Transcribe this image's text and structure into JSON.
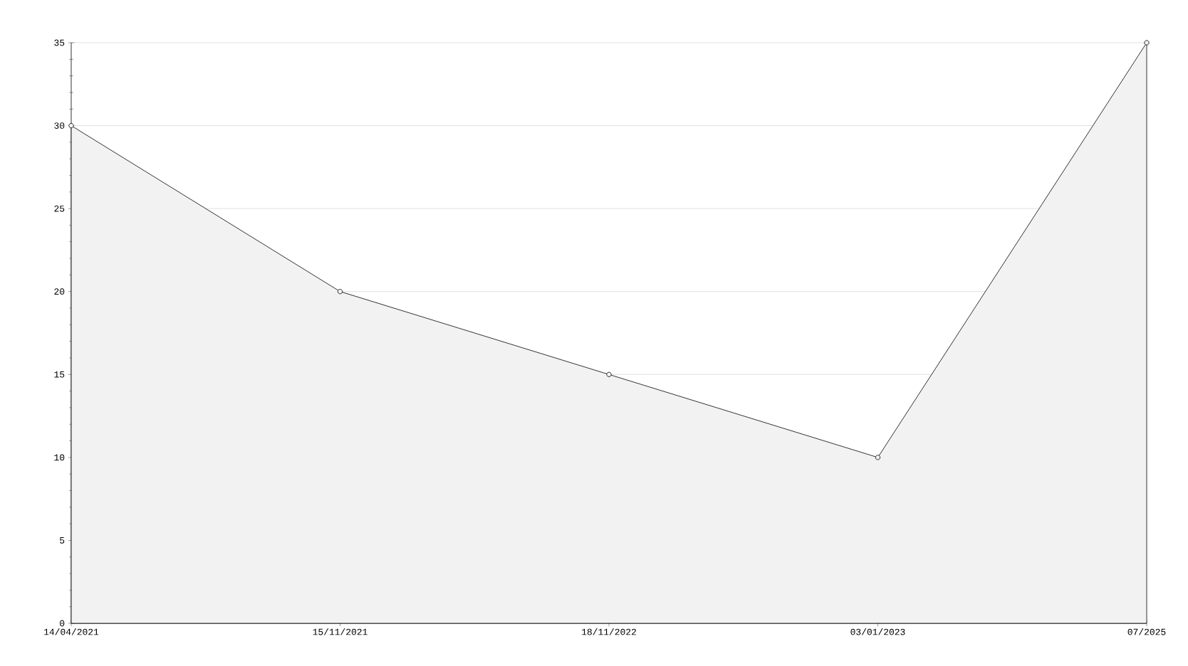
{
  "chart_data": {
    "type": "area",
    "categories": [
      "14/04/2021",
      "15/11/2021",
      "18/11/2022",
      "03/01/2023",
      "07/2025"
    ],
    "values": [
      30,
      20,
      15,
      10,
      35
    ],
    "color": "#000000",
    "ylim": [
      0,
      35
    ],
    "yticks": [
      0,
      5,
      10,
      15,
      20,
      25,
      30,
      35
    ],
    "grid": "y",
    "marker": "circle",
    "line_style": "solid"
  }
}
